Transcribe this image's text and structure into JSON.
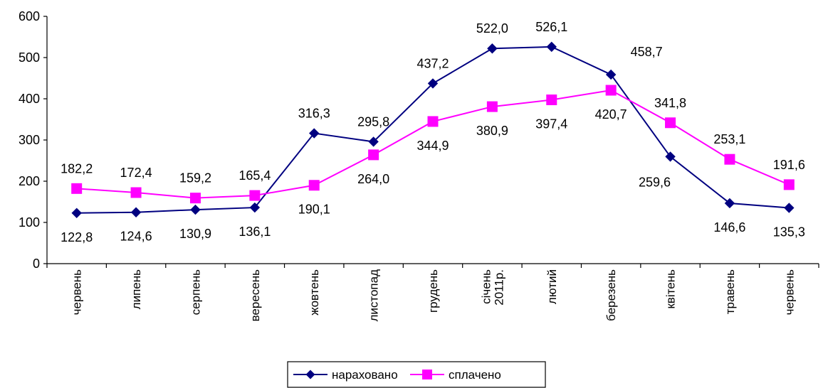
{
  "chart_data": {
    "type": "line",
    "title": "",
    "xlabel": "",
    "ylabel": "",
    "ylim": [
      0,
      600
    ],
    "yticks": [
      0,
      100,
      200,
      300,
      400,
      500,
      600
    ],
    "grid": false,
    "legend_position": "bottom",
    "categories": [
      [
        "червень"
      ],
      [
        "липень"
      ],
      [
        "серпень"
      ],
      [
        "вересень"
      ],
      [
        "жовтень"
      ],
      [
        "листопад"
      ],
      [
        "грудень"
      ],
      [
        "січень",
        "2011р."
      ],
      [
        "лютий"
      ],
      [
        "березень"
      ],
      [
        "квітень"
      ],
      [
        "травень"
      ],
      [
        "червень"
      ]
    ],
    "series": [
      {
        "name": "нараховано",
        "color": "#000080",
        "marker": "diamond",
        "values": [
          122.8,
          124.6,
          130.9,
          136.1,
          316.3,
          295.8,
          437.2,
          522.0,
          526.1,
          458.7,
          259.6,
          146.6,
          135.3
        ],
        "labels": [
          "122,8",
          "124,6",
          "130,9",
          "136,1",
          "316,3",
          "295,8",
          "437,2",
          "522,0",
          "526,1",
          "458,7",
          "259,6",
          "146,6",
          "135,3"
        ],
        "label_pos": [
          "below",
          "below",
          "below",
          "below",
          "above",
          "above",
          "above",
          "above",
          "above",
          "above-right",
          "below-left",
          "below",
          "below"
        ]
      },
      {
        "name": "сплачено",
        "color": "#ff00ff",
        "marker": "square",
        "values": [
          182.2,
          172.4,
          159.2,
          165.4,
          190.1,
          264.0,
          344.9,
          380.9,
          397.4,
          420.7,
          341.8,
          253.1,
          191.6
        ],
        "labels": [
          "182,2",
          "172,4",
          "159,2",
          "165,4",
          "190,1",
          "264,0",
          "344,9",
          "380,9",
          "397,4",
          "420,7",
          "341,8",
          "253,1",
          "191,6"
        ],
        "label_pos": [
          "above",
          "above",
          "above",
          "above",
          "below",
          "below",
          "below",
          "below",
          "below",
          "below",
          "above",
          "above",
          "above"
        ]
      }
    ]
  }
}
